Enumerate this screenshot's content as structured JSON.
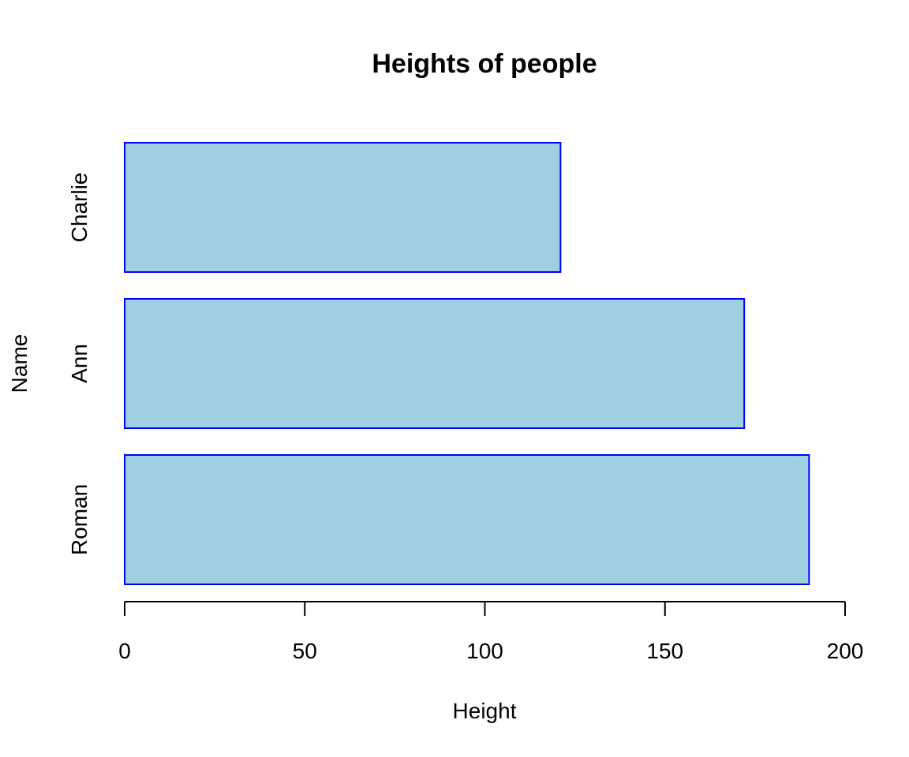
{
  "chart_data": {
    "type": "bar",
    "orientation": "horizontal",
    "title": "Heights of people",
    "xlabel": "Height",
    "ylabel": "Name",
    "categories": [
      "Roman",
      "Ann",
      "Charlie"
    ],
    "values": [
      190,
      172,
      121
    ],
    "xlim": [
      0,
      200
    ],
    "x_ticks": [
      0,
      50,
      100,
      150,
      200
    ],
    "x_tick_labels": [
      "0",
      "50",
      "100",
      "150",
      "200"
    ],
    "grid": false,
    "legend": "none",
    "colors": {
      "bar_fill": "#9fcfe0",
      "bar_border": "#0000ff",
      "axis": "#000000",
      "text": "#000000",
      "background": "#ffffff"
    }
  }
}
